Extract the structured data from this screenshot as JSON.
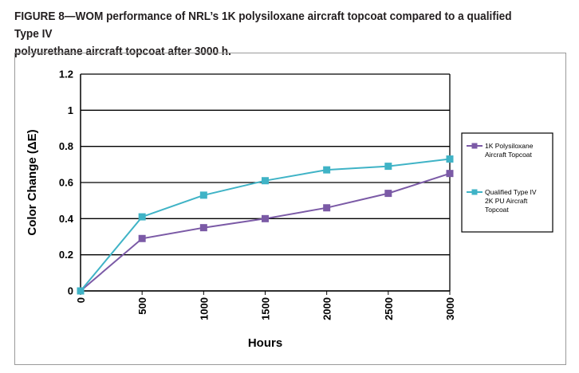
{
  "caption": {
    "line1": "FIGURE 8—WOM performance of NRL’s 1K polysiloxane aircraft topcoat compared to a qualified Type IV",
    "line2": "polyurethane aircraft topcoat after 3000 h."
  },
  "chart_data": {
    "type": "line",
    "title": "",
    "xlabel": "Hours",
    "ylabel": "Color Change (ΔE)",
    "x": [
      0,
      500,
      1000,
      1500,
      2000,
      2500,
      3000
    ],
    "x_tick_labels": [
      "0",
      "500",
      "1000",
      "1500",
      "2000",
      "2500",
      "3000"
    ],
    "y_tick_labels": [
      "0",
      "0.2",
      "0.4",
      "0.6",
      "0.8",
      "1",
      "1.2"
    ],
    "xlim": [
      0,
      3000
    ],
    "ylim": [
      0,
      1.2
    ],
    "grid": "horizontal",
    "legend_position": "right",
    "series": [
      {
        "name_lines": [
          "1K Polysiloxane",
          "Aircraft Topcoat"
        ],
        "color": "#7b5aa6",
        "marker": "square",
        "values": [
          0,
          0.29,
          0.35,
          0.4,
          0.46,
          0.54,
          0.65
        ]
      },
      {
        "name_lines": [
          "Qualified Type IV",
          "2K PU Aircraft",
          "Topcoat"
        ],
        "color": "#3fb3c6",
        "marker": "square",
        "values": [
          0,
          0.41,
          0.53,
          0.61,
          0.67,
          0.69,
          0.73
        ]
      }
    ]
  }
}
